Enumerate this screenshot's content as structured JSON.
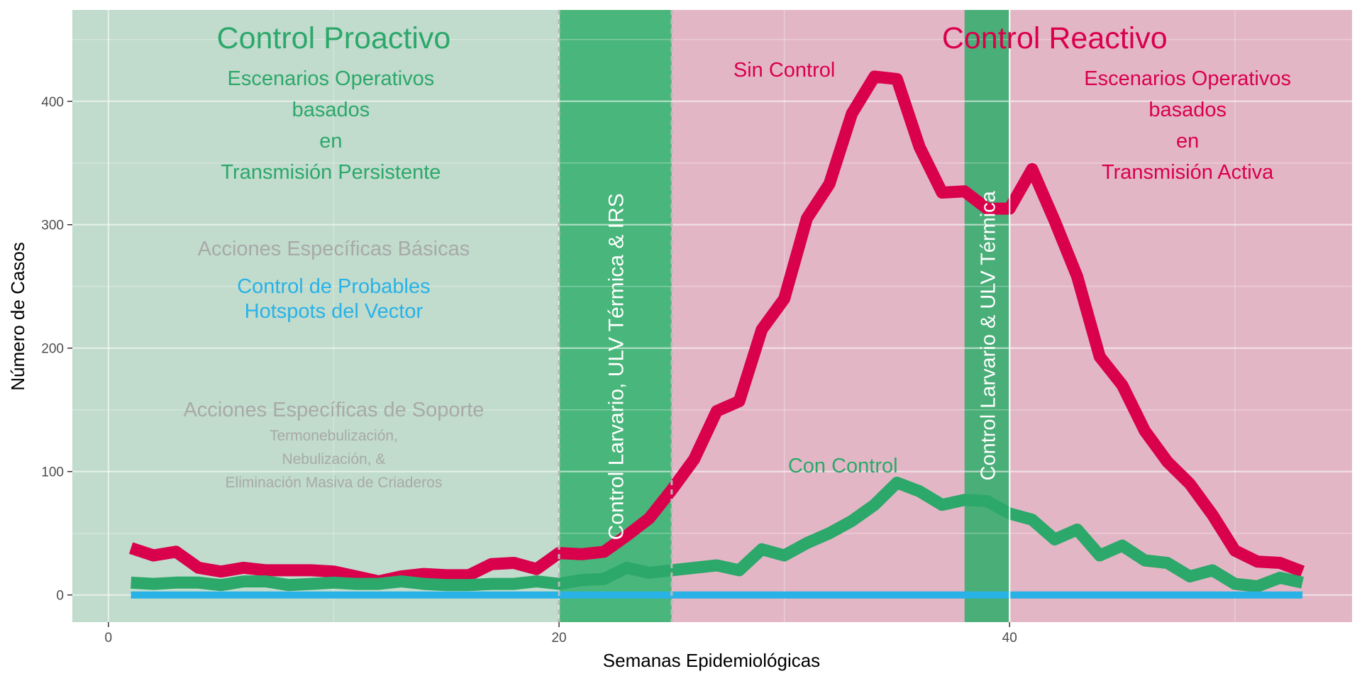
{
  "chart_data": {
    "type": "line",
    "title": "",
    "xlabel": "Semanas Epidemiológicas",
    "ylabel": "Número de Casos",
    "xlim": [
      -1.6,
      55.2
    ],
    "ylim": [
      -22,
      474
    ],
    "x_ticks": [
      0,
      20,
      40
    ],
    "y_ticks": [
      0,
      100,
      200,
      300,
      400
    ],
    "grid": true,
    "colors": {
      "panel_bg": "#ebebeb",
      "grid": "#ffffff",
      "proactive_bg": "#c1dbcd",
      "reactive_bg": "#e3b6c6",
      "control_band": "#49b67b",
      "reactive_band": "#4aae78",
      "band_text": "#ffffff",
      "sin_control": "#d9004c",
      "con_control": "#2ca86a",
      "hotspot": "#29b2e6",
      "muted_text": "#a8aaa8"
    },
    "regions": [
      {
        "name": "proactive",
        "x0": -1.6,
        "x1": 20,
        "color": "#c1dbcd"
      },
      {
        "name": "control-band-1",
        "x0": 20,
        "x1": 25,
        "color": "#49b67b",
        "label": "Control Larvario, ULV Térmica & IRS"
      },
      {
        "name": "reactive",
        "x0": 25,
        "x1": 55.2,
        "color": "#e3b6c6"
      },
      {
        "name": "control-band-2",
        "x0": 38,
        "x1": 40,
        "color": "#4aae78",
        "label": "Control Larvario & ULV Térmica"
      }
    ],
    "annotations": {
      "proactive_title": "Control Proactivo",
      "reactive_title": "Control Reactivo",
      "proactive_scenarios": [
        "Escenarios Operativos",
        "basados",
        "en",
        "Transmisión Persistente"
      ],
      "reactive_scenarios": [
        "Escenarios Operativos",
        "basados",
        "en",
        "Transmisión Activa"
      ],
      "basic_actions": "Acciones Específicas Básicas",
      "hotspots": [
        "Control de Probables",
        "Hotspots del Vector"
      ],
      "support_actions": "Acciones Específicas de Soporte",
      "support_items": [
        "Termonebulización,",
        "Nebulización, &",
        "Eliminación Masiva de Criaderos"
      ],
      "sin_control_label": "Sin Control",
      "con_control_label": "Con Control"
    },
    "series": [
      {
        "name": "Sin Control",
        "color": "#d9004c",
        "x": [
          1,
          2,
          3,
          4,
          5,
          6,
          7,
          8,
          9,
          10,
          11,
          12,
          13,
          14,
          15,
          16,
          17,
          18,
          19,
          20,
          21,
          22,
          23,
          24,
          25,
          26,
          27,
          28,
          29,
          30,
          31,
          32,
          33,
          34,
          35,
          36,
          37,
          38,
          39,
          40,
          41,
          42,
          43,
          44,
          45,
          46,
          47,
          48,
          49,
          50,
          51,
          52,
          53
        ],
        "values": [
          38,
          32,
          35,
          22,
          19,
          22,
          20,
          20,
          20,
          19,
          15,
          11,
          15,
          17,
          16,
          16,
          25,
          26,
          21,
          34,
          33,
          35,
          48,
          62,
          85,
          110,
          149,
          157,
          215,
          240,
          305,
          333,
          390,
          420,
          418,
          363,
          326,
          327,
          313,
          313,
          345,
          303,
          258,
          193,
          170,
          133,
          108,
          90,
          65,
          36,
          27,
          26,
          19
        ]
      },
      {
        "name": "Con Control",
        "color": "#2ca86a",
        "x": [
          1,
          2,
          3,
          4,
          5,
          6,
          7,
          8,
          9,
          10,
          11,
          12,
          13,
          14,
          15,
          16,
          17,
          18,
          19,
          20,
          21,
          22,
          23,
          24,
          25,
          26,
          27,
          28,
          29,
          30,
          31,
          32,
          33,
          34,
          35,
          36,
          37,
          38,
          39,
          40,
          41,
          42,
          43,
          44,
          45,
          46,
          47,
          48,
          49,
          50,
          51,
          52,
          53
        ],
        "values": [
          10,
          9,
          10,
          10,
          8,
          11,
          11,
          8,
          9,
          10,
          9,
          9,
          11,
          9,
          8,
          8,
          9,
          9,
          11,
          9,
          12,
          13,
          22,
          18,
          20,
          22,
          24,
          20,
          37,
          32,
          42,
          50,
          60,
          73,
          91,
          84,
          73,
          77,
          76,
          66,
          61,
          45,
          53,
          32,
          40,
          28,
          26,
          15,
          20,
          9,
          7,
          14,
          10
        ]
      },
      {
        "name": "Control de Probables Hotspots del Vector",
        "color": "#29b2e6",
        "x": [
          1,
          53
        ],
        "values": [
          0,
          0
        ]
      }
    ]
  }
}
